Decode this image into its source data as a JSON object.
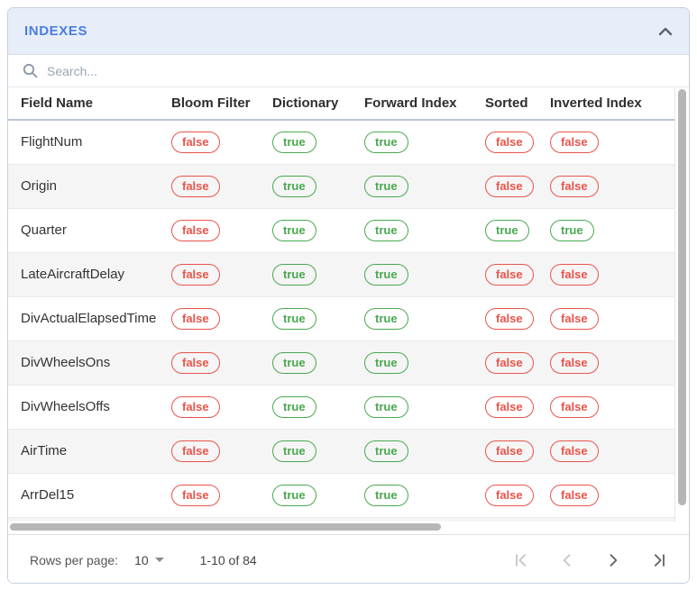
{
  "panel": {
    "title": "INDEXES"
  },
  "search": {
    "placeholder": "Search..."
  },
  "table": {
    "columns": [
      "Field Name",
      "Bloom Filter",
      "Dictionary",
      "Forward Index",
      "Sorted",
      "Inverted Index"
    ],
    "rows": [
      {
        "field": "FlightNum",
        "bloom_filter": "false",
        "dictionary": "true",
        "forward_index": "true",
        "sorted": "false",
        "inverted_index": "false"
      },
      {
        "field": "Origin",
        "bloom_filter": "false",
        "dictionary": "true",
        "forward_index": "true",
        "sorted": "false",
        "inverted_index": "false"
      },
      {
        "field": "Quarter",
        "bloom_filter": "false",
        "dictionary": "true",
        "forward_index": "true",
        "sorted": "true",
        "inverted_index": "true"
      },
      {
        "field": "LateAircraftDelay",
        "bloom_filter": "false",
        "dictionary": "true",
        "forward_index": "true",
        "sorted": "false",
        "inverted_index": "false"
      },
      {
        "field": "DivActualElapsedTime",
        "bloom_filter": "false",
        "dictionary": "true",
        "forward_index": "true",
        "sorted": "false",
        "inverted_index": "false"
      },
      {
        "field": "DivWheelsOns",
        "bloom_filter": "false",
        "dictionary": "true",
        "forward_index": "true",
        "sorted": "false",
        "inverted_index": "false"
      },
      {
        "field": "DivWheelsOffs",
        "bloom_filter": "false",
        "dictionary": "true",
        "forward_index": "true",
        "sorted": "false",
        "inverted_index": "false"
      },
      {
        "field": "AirTime",
        "bloom_filter": "false",
        "dictionary": "true",
        "forward_index": "true",
        "sorted": "false",
        "inverted_index": "false"
      },
      {
        "field": "ArrDel15",
        "bloom_filter": "false",
        "dictionary": "true",
        "forward_index": "true",
        "sorted": "false",
        "inverted_index": "false"
      }
    ]
  },
  "pagination": {
    "rows_per_page_label": "Rows per page:",
    "rows_per_page_value": "10",
    "range_label": "1-10 of 84",
    "first_page_enabled": false,
    "prev_page_enabled": false,
    "next_page_enabled": true,
    "last_page_enabled": true
  },
  "colors": {
    "accent": "#4a7de2",
    "panel_header_bg": "#e8eef9",
    "pill_true": "#4aa850",
    "pill_false": "#e9544b",
    "stripe": "#f5f5f5"
  }
}
